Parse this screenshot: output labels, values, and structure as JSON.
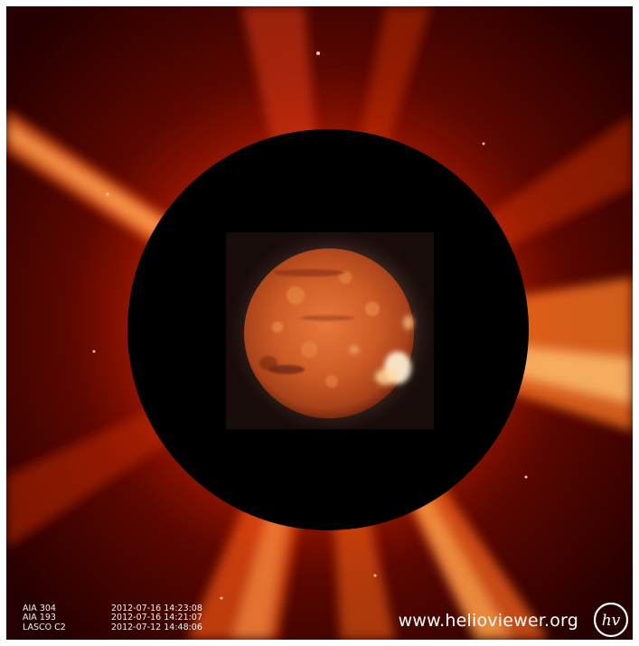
{
  "image": {
    "scene": "helioviewer-composite",
    "layers": [
      {
        "name": "AIA 304",
        "date": "2012-07-16 14:23:08"
      },
      {
        "name": "AIA 193",
        "date": "2012-07-16 14:21:07"
      },
      {
        "name": "LASCO C2",
        "date": "2012-07-12 14:48:06"
      }
    ],
    "watermark": "www.helioviewer.org",
    "logo_text": "hv"
  },
  "colors": {
    "corona_dark": "#2a0000",
    "corona_mid": "#b81c00",
    "corona_bright": "#ff9a3c",
    "occulter": "#000000",
    "sun_core": "#d8642a",
    "sun_edge": "#8f2f0e"
  },
  "icons": {
    "logo": "helioviewer-logo-icon"
  }
}
